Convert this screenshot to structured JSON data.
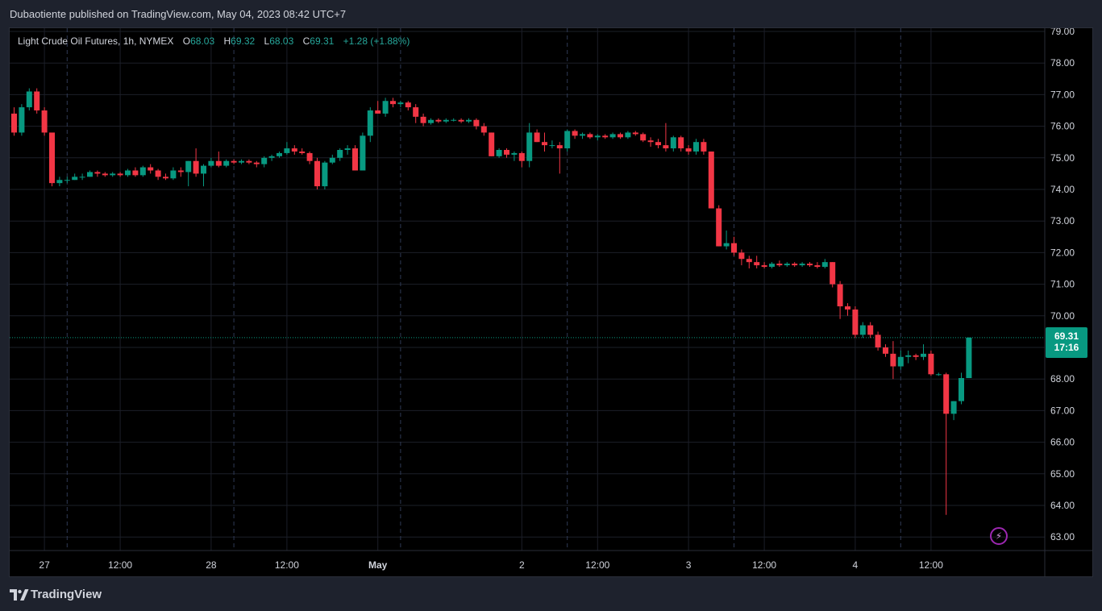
{
  "header": {
    "published_text": "Dubaotiente published on TradingView.com, May 04, 2023 08:42 UTC+7"
  },
  "legend": {
    "symbol": "Light Crude Oil Futures, 1h, NYMEX",
    "open_label": "O",
    "open": "68.03",
    "high_label": "H",
    "high": "69.32",
    "low_label": "L",
    "low": "68.03",
    "close_label": "C",
    "close": "69.31",
    "change": "+1.28 (+1.88%)"
  },
  "last_price": {
    "price": "69.31",
    "countdown": "17:16"
  },
  "footer": {
    "brand": "TradingView"
  },
  "colors": {
    "up": "#089981",
    "down": "#f23645",
    "background": "#000000",
    "panel": "#1e222d",
    "text": "#d1d4dc",
    "alert": "#9c27b0"
  },
  "icons": {
    "alert": "lightning-icon",
    "logo": "tradingview-logo-icon"
  },
  "chart_data": {
    "type": "candlestick",
    "title": "Light Crude Oil Futures, 1h, NYMEX",
    "ylim": [
      62.7,
      79.2
    ],
    "yticks": [
      "63.00",
      "64.00",
      "65.00",
      "66.00",
      "67.00",
      "68.00",
      "69.00",
      "70.00",
      "71.00",
      "72.00",
      "73.00",
      "74.00",
      "75.00",
      "76.00",
      "77.00",
      "78.00",
      "79.00"
    ],
    "xticks": [
      {
        "label": "27",
        "index": 4,
        "bold": false
      },
      {
        "label": "12:00",
        "index": 14,
        "bold": false
      },
      {
        "label": "28",
        "index": 26,
        "bold": false
      },
      {
        "label": "12:00",
        "index": 36,
        "bold": false
      },
      {
        "label": "May",
        "index": 48,
        "bold": true
      },
      {
        "label": "2",
        "index": 67,
        "bold": false
      },
      {
        "label": "12:00",
        "index": 77,
        "bold": false
      },
      {
        "label": "3",
        "index": 89,
        "bold": false
      },
      {
        "label": "12:00",
        "index": 99,
        "bold": false
      },
      {
        "label": "4",
        "index": 111,
        "bold": false
      },
      {
        "label": "12:00",
        "index": 121,
        "bold": false
      }
    ],
    "day_separators": [
      7,
      29,
      51,
      73,
      95,
      117
    ],
    "candles": [
      [
        76.4,
        76.6,
        75.7,
        75.8
      ],
      [
        75.8,
        76.7,
        75.7,
        76.6
      ],
      [
        76.6,
        77.2,
        76.5,
        77.1
      ],
      [
        77.1,
        77.2,
        76.4,
        76.5
      ],
      [
        76.5,
        76.6,
        75.7,
        75.8
      ],
      [
        75.8,
        75.8,
        74.1,
        74.2
      ],
      [
        74.2,
        74.4,
        74.1,
        74.3
      ],
      [
        74.3,
        74.4,
        74.2,
        74.3
      ],
      [
        74.3,
        74.5,
        74.3,
        74.4
      ],
      [
        74.4,
        74.5,
        74.3,
        74.4
      ],
      [
        74.4,
        74.6,
        74.4,
        74.55
      ],
      [
        74.55,
        74.6,
        74.4,
        74.5
      ],
      [
        74.5,
        74.55,
        74.4,
        74.45
      ],
      [
        74.45,
        74.55,
        74.4,
        74.5
      ],
      [
        74.5,
        74.55,
        74.4,
        74.45
      ],
      [
        74.45,
        74.65,
        74.4,
        74.6
      ],
      [
        74.6,
        74.7,
        74.4,
        74.45
      ],
      [
        74.45,
        74.75,
        74.4,
        74.7
      ],
      [
        74.7,
        74.8,
        74.5,
        74.6
      ],
      [
        74.6,
        74.65,
        74.3,
        74.4
      ],
      [
        74.4,
        74.5,
        74.3,
        74.35
      ],
      [
        74.35,
        74.7,
        74.3,
        74.6
      ],
      [
        74.6,
        74.7,
        74.4,
        74.55
      ],
      [
        74.55,
        74.9,
        74.1,
        74.9
      ],
      [
        74.9,
        75.3,
        74.4,
        74.5
      ],
      [
        74.5,
        74.8,
        74.1,
        74.75
      ],
      [
        74.75,
        75.0,
        74.7,
        74.9
      ],
      [
        74.9,
        75.2,
        74.7,
        74.75
      ],
      [
        74.75,
        74.95,
        74.7,
        74.9
      ],
      [
        74.9,
        74.95,
        74.8,
        74.85
      ],
      [
        74.85,
        74.95,
        74.8,
        74.9
      ],
      [
        74.9,
        74.95,
        74.8,
        74.85
      ],
      [
        74.85,
        74.9,
        74.7,
        74.8
      ],
      [
        74.8,
        75.05,
        74.7,
        75.0
      ],
      [
        75.0,
        75.1,
        74.9,
        75.05
      ],
      [
        75.05,
        75.2,
        75.0,
        75.15
      ],
      [
        75.15,
        75.5,
        75.1,
        75.3
      ],
      [
        75.3,
        75.4,
        75.1,
        75.2
      ],
      [
        75.2,
        75.3,
        75.1,
        75.15
      ],
      [
        75.15,
        75.2,
        74.8,
        74.9
      ],
      [
        74.9,
        75.0,
        74.0,
        74.1
      ],
      [
        74.1,
        74.9,
        74.0,
        74.85
      ],
      [
        74.85,
        75.1,
        74.8,
        75.0
      ],
      [
        75.0,
        75.3,
        74.9,
        75.25
      ],
      [
        75.25,
        75.4,
        75.1,
        75.3
      ],
      [
        75.3,
        75.4,
        74.6,
        74.6
      ],
      [
        74.6,
        75.8,
        74.6,
        75.7
      ],
      [
        75.7,
        76.6,
        75.5,
        76.5
      ],
      [
        76.5,
        76.8,
        76.4,
        76.4
      ],
      [
        76.4,
        76.9,
        76.3,
        76.8
      ],
      [
        76.8,
        76.9,
        76.6,
        76.7
      ],
      [
        76.7,
        76.8,
        76.6,
        76.75
      ],
      [
        76.75,
        76.8,
        76.5,
        76.6
      ],
      [
        76.6,
        76.7,
        76.1,
        76.3
      ],
      [
        76.3,
        76.4,
        76.0,
        76.1
      ],
      [
        76.1,
        76.25,
        76.05,
        76.2
      ],
      [
        76.2,
        76.25,
        76.1,
        76.15
      ],
      [
        76.15,
        76.25,
        76.1,
        76.2
      ],
      [
        76.2,
        76.25,
        76.15,
        76.2
      ],
      [
        76.2,
        76.25,
        76.1,
        76.15
      ],
      [
        76.15,
        76.25,
        76.1,
        76.2
      ],
      [
        76.2,
        76.25,
        75.9,
        76.0
      ],
      [
        76.0,
        76.1,
        75.7,
        75.8
      ],
      [
        75.8,
        75.8,
        75.05,
        75.05
      ],
      [
        75.05,
        75.3,
        75.0,
        75.25
      ],
      [
        75.25,
        75.3,
        75.0,
        75.1
      ],
      [
        75.1,
        75.2,
        74.9,
        75.15
      ],
      [
        75.15,
        75.2,
        74.7,
        74.9
      ],
      [
        74.9,
        76.1,
        74.7,
        75.8
      ],
      [
        75.8,
        75.9,
        75.5,
        75.5
      ],
      [
        75.5,
        75.8,
        75.2,
        75.4
      ],
      [
        75.4,
        75.55,
        75.3,
        75.4
      ],
      [
        75.4,
        75.5,
        74.5,
        75.3
      ],
      [
        75.3,
        75.9,
        75.2,
        75.85
      ],
      [
        75.85,
        75.9,
        75.6,
        75.7
      ],
      [
        75.7,
        75.8,
        75.6,
        75.75
      ],
      [
        75.75,
        75.8,
        75.6,
        75.65
      ],
      [
        75.65,
        75.75,
        75.55,
        75.7
      ],
      [
        75.7,
        75.75,
        75.6,
        75.65
      ],
      [
        75.65,
        75.8,
        75.6,
        75.75
      ],
      [
        75.75,
        75.8,
        75.6,
        75.65
      ],
      [
        75.65,
        75.85,
        75.6,
        75.8
      ],
      [
        75.8,
        75.85,
        75.7,
        75.75
      ],
      [
        75.75,
        75.8,
        75.5,
        75.55
      ],
      [
        75.55,
        75.65,
        75.35,
        75.5
      ],
      [
        75.5,
        75.6,
        75.3,
        75.4
      ],
      [
        75.4,
        76.1,
        75.2,
        75.3
      ],
      [
        75.3,
        75.7,
        75.2,
        75.65
      ],
      [
        75.65,
        75.7,
        75.2,
        75.3
      ],
      [
        75.3,
        75.4,
        75.1,
        75.2
      ],
      [
        75.2,
        75.6,
        75.1,
        75.5
      ],
      [
        75.5,
        75.6,
        75.1,
        75.2
      ],
      [
        75.2,
        75.2,
        73.4,
        73.4
      ],
      [
        73.4,
        73.5,
        72.2,
        72.2
      ],
      [
        72.2,
        72.7,
        72.1,
        72.3
      ],
      [
        72.3,
        72.5,
        71.9,
        72.0
      ],
      [
        72.0,
        72.1,
        71.6,
        71.8
      ],
      [
        71.8,
        71.9,
        71.5,
        71.7
      ],
      [
        71.7,
        71.9,
        71.5,
        71.6
      ],
      [
        71.6,
        71.7,
        71.5,
        71.55
      ],
      [
        71.55,
        71.7,
        71.5,
        71.65
      ],
      [
        71.65,
        71.75,
        71.55,
        71.6
      ],
      [
        71.6,
        71.7,
        71.55,
        71.65
      ],
      [
        71.65,
        71.7,
        71.55,
        71.6
      ],
      [
        71.6,
        71.7,
        71.55,
        71.65
      ],
      [
        71.65,
        71.7,
        71.55,
        71.6
      ],
      [
        71.6,
        71.7,
        71.5,
        71.55
      ],
      [
        71.55,
        71.8,
        71.5,
        71.7
      ],
      [
        71.7,
        71.7,
        70.9,
        71.0
      ],
      [
        71.0,
        71.1,
        69.9,
        70.3
      ],
      [
        70.3,
        70.4,
        70.0,
        70.2
      ],
      [
        70.2,
        70.3,
        69.3,
        69.4
      ],
      [
        69.4,
        69.8,
        69.3,
        69.7
      ],
      [
        69.7,
        69.8,
        69.3,
        69.4
      ],
      [
        69.4,
        69.5,
        68.9,
        69.0
      ],
      [
        69.0,
        69.1,
        68.7,
        68.8
      ],
      [
        68.8,
        69.2,
        68.0,
        68.4
      ],
      [
        68.4,
        68.9,
        68.3,
        68.7
      ],
      [
        68.7,
        68.9,
        68.5,
        68.75
      ],
      [
        68.75,
        68.8,
        68.6,
        68.7
      ],
      [
        68.7,
        69.1,
        68.6,
        68.8
      ],
      [
        68.8,
        68.9,
        68.1,
        68.15
      ],
      [
        68.15,
        68.2,
        68.1,
        68.15
      ],
      [
        68.15,
        68.2,
        63.7,
        66.9
      ],
      [
        66.9,
        67.3,
        66.7,
        67.3
      ],
      [
        67.3,
        68.2,
        67.2,
        68.03
      ],
      [
        68.03,
        69.32,
        68.03,
        69.31
      ]
    ]
  }
}
